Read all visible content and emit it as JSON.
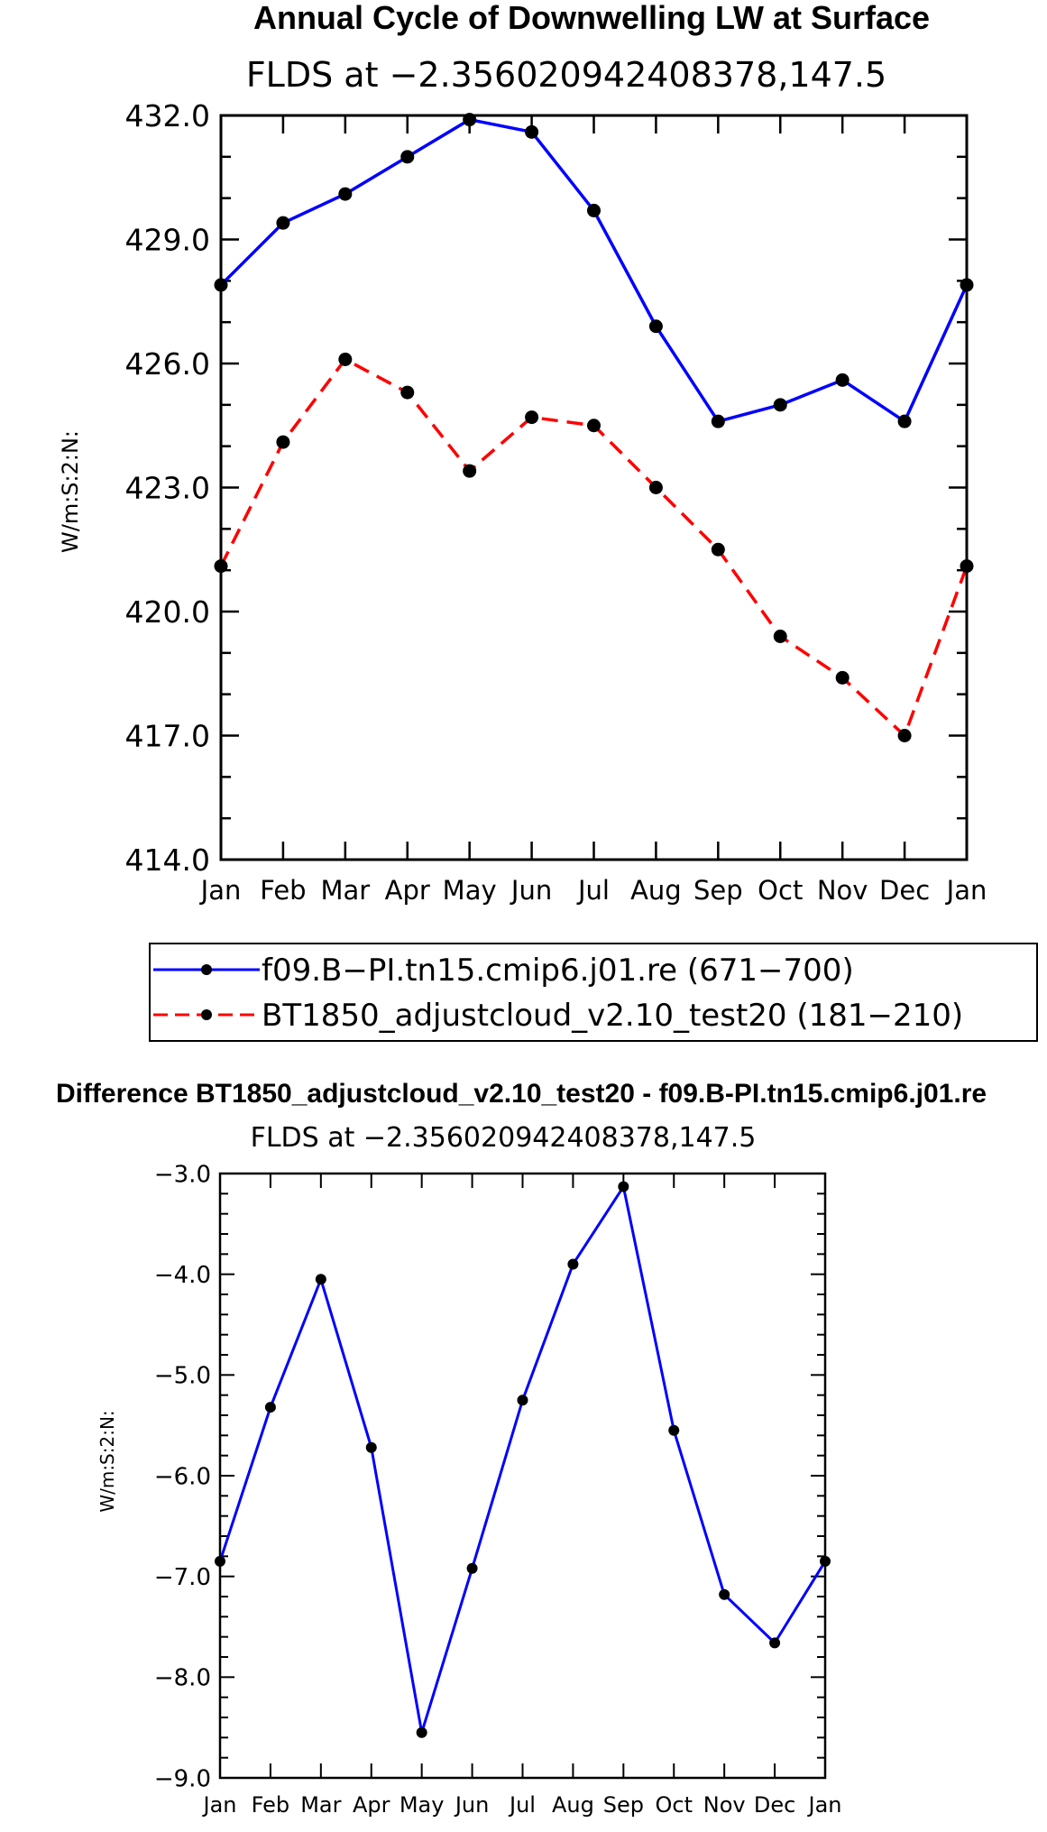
{
  "chart_data": [
    {
      "type": "line",
      "title": "Annual Cycle of Downwelling LW at Surface",
      "subtitle": "FLDS at −2.356020942408378,147.5",
      "ylabel": "W/m:S:2:N:",
      "xlabel": "",
      "categories": [
        "Jan",
        "Feb",
        "Mar",
        "Apr",
        "May",
        "Jun",
        "Jul",
        "Aug",
        "Sep",
        "Oct",
        "Nov",
        "Dec",
        "Jan"
      ],
      "ylim": [
        414.0,
        432.0
      ],
      "yticks": [
        "414.0",
        "417.0",
        "420.0",
        "423.0",
        "426.0",
        "429.0",
        "432.0"
      ],
      "series": [
        {
          "name": "f09.B−PI.tn15.cmip6.j01.re (671−700)",
          "color": "#0000ff",
          "dash": "solid",
          "values": [
            427.9,
            429.4,
            430.1,
            431.0,
            431.9,
            431.6,
            429.7,
            426.9,
            424.6,
            425.0,
            425.6,
            424.6,
            427.9
          ]
        },
        {
          "name": "BT1850_adjustcloud_v2.10_test20 (181−210)",
          "color": "#ff0000",
          "dash": "dashed",
          "values": [
            421.1,
            424.1,
            426.1,
            425.3,
            423.4,
            424.7,
            424.5,
            423.0,
            421.5,
            419.4,
            418.4,
            417.0,
            421.1
          ]
        }
      ],
      "marker_color": "#000000"
    },
    {
      "type": "line",
      "title": "Difference BT1850_adjustcloud_v2.10_test20 - f09.B-PI.tn15.cmip6.j01.re",
      "subtitle": "FLDS at −2.356020942408378,147.5",
      "ylabel": "W/m:S:2:N:",
      "xlabel": "",
      "categories": [
        "Jan",
        "Feb",
        "Mar",
        "Apr",
        "May",
        "Jun",
        "Jul",
        "Aug",
        "Sep",
        "Oct",
        "Nov",
        "Dec",
        "Jan"
      ],
      "ylim": [
        -9.0,
        -3.0
      ],
      "yticks": [
        "−9.0",
        "−8.0",
        "−7.0",
        "−6.0",
        "−5.0",
        "−4.0",
        "−3.0"
      ],
      "series": [
        {
          "name": "Difference",
          "color": "#0000ff",
          "dash": "solid",
          "values": [
            -6.85,
            -5.32,
            -4.05,
            -5.72,
            -8.55,
            -6.92,
            -5.25,
            -3.9,
            -3.13,
            -5.55,
            -7.18,
            -7.66,
            -6.85
          ]
        }
      ],
      "marker_color": "#000000"
    }
  ]
}
